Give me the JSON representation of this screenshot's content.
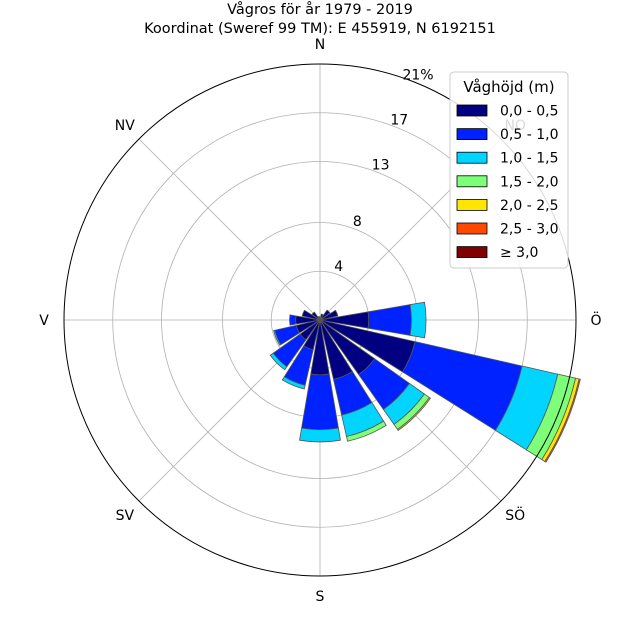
{
  "chart_data": {
    "type": "windrose",
    "title": "Vågros för år 1979 - 2019",
    "subtitle": "Koordinat (Sweref 99 TM): E 455919, N 6192151",
    "radial_unit": "percent",
    "radial_ticks": [
      {
        "value": 4,
        "label": "4"
      },
      {
        "value": 8,
        "label": "8"
      },
      {
        "value": 13,
        "label": "13"
      },
      {
        "value": 17,
        "label": "17"
      },
      {
        "value": 21,
        "label": "21%"
      }
    ],
    "rmax": 21,
    "grid": true,
    "direction_labels": [
      {
        "angle": 0,
        "label": "N"
      },
      {
        "angle": 45,
        "label": "NO"
      },
      {
        "angle": 90,
        "label": "Ö"
      },
      {
        "angle": 135,
        "label": "SÖ"
      },
      {
        "angle": 180,
        "label": "S"
      },
      {
        "angle": 225,
        "label": "SV"
      },
      {
        "angle": 270,
        "label": "V"
      },
      {
        "angle": 315,
        "label": "NV"
      }
    ],
    "sector_width_deg": 22.5,
    "directions_deg": [
      0,
      22.5,
      45,
      67.5,
      90,
      112.5,
      135,
      157.5,
      180,
      202.5,
      225,
      247.5,
      270,
      292.5,
      315,
      337.5
    ],
    "legend": {
      "title": "Våghöjd (m)",
      "placement": "top-right",
      "entries": [
        {
          "label": "0,0 - 0,5",
          "color": "#000080"
        },
        {
          "label": "0,5 - 1,0",
          "color": "#0022ff"
        },
        {
          "label": "1,0 - 1,5",
          "color": "#00d4ff"
        },
        {
          "label": "1,5 - 2,0",
          "color": "#7dff7a"
        },
        {
          "label": "2,0 - 2,5",
          "color": "#ffe600"
        },
        {
          "label": "2,5 - 3,0",
          "color": "#ff4800"
        },
        {
          "label": "≥ 3,0",
          "color": "#800000"
        }
      ]
    },
    "series": [
      {
        "name": "0,0 - 0,5",
        "values": [
          0.2,
          0.5,
          1.0,
          1.5,
          4.0,
          8.0,
          5.5,
          5.0,
          4.5,
          2.5,
          2.0,
          2.0,
          2.0,
          1.5,
          0.8,
          0.3
        ]
      },
      {
        "name": "0,5 - 1,0",
        "values": [
          0.0,
          0.0,
          0.0,
          0.0,
          3.5,
          9.0,
          3.5,
          3.0,
          4.5,
          3.0,
          2.7,
          1.8,
          0.5,
          0.0,
          0.0,
          0.0
        ]
      },
      {
        "name": "1,0 - 1,5",
        "values": [
          0.0,
          0.0,
          0.0,
          0.0,
          1.2,
          3.0,
          1.5,
          1.8,
          1.0,
          0.3,
          0.3,
          0.1,
          0.0,
          0.0,
          0.0,
          0.0
        ]
      },
      {
        "name": "1,5 - 2,0",
        "values": [
          0.0,
          0.0,
          0.0,
          0.0,
          0.0,
          1.5,
          0.5,
          0.4,
          0.0,
          0.0,
          0.0,
          0.0,
          0.0,
          0.0,
          0.0,
          0.0
        ]
      },
      {
        "name": "2,0 - 2,5",
        "values": [
          0.0,
          0.0,
          0.0,
          0.0,
          0.0,
          0.3,
          0.1,
          0.0,
          0.0,
          0.0,
          0.0,
          0.0,
          0.0,
          0.0,
          0.0,
          0.0
        ]
      },
      {
        "name": "2,5 - 3,0",
        "values": [
          0.0,
          0.0,
          0.0,
          0.0,
          0.0,
          0.1,
          0.0,
          0.0,
          0.0,
          0.0,
          0.0,
          0.0,
          0.0,
          0.0,
          0.0,
          0.0
        ]
      },
      {
        "name": "≥ 3,0",
        "values": [
          0.0,
          0.0,
          0.0,
          0.0,
          0.0,
          0.0,
          0.0,
          0.0,
          0.0,
          0.0,
          0.0,
          0.0,
          0.0,
          0.0,
          0.0,
          0.0
        ]
      }
    ]
  }
}
